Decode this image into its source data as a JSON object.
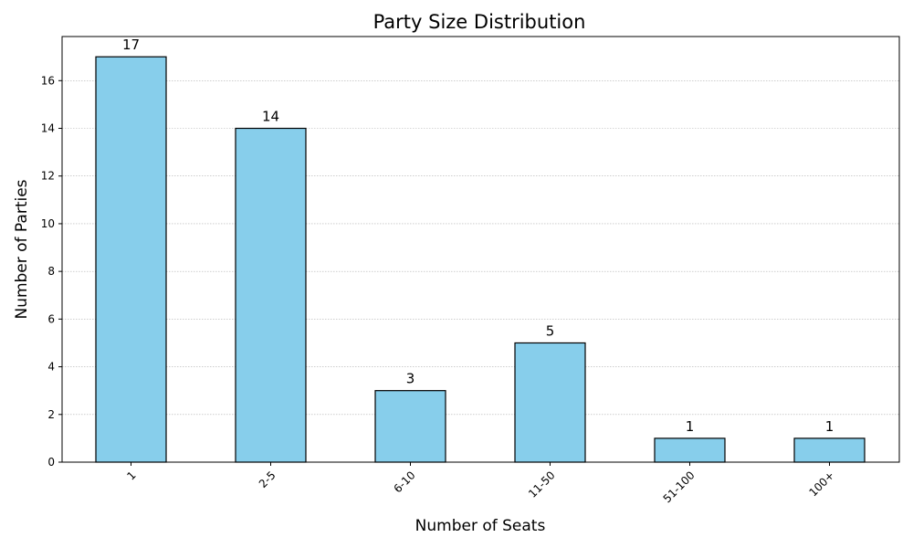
{
  "chart_data": {
    "type": "bar",
    "title": "Party Size Distribution",
    "xlabel": "Number of Seats",
    "ylabel": "Number of Parties",
    "categories": [
      "1",
      "2-5",
      "6-10",
      "11-50",
      "51-100",
      "100+"
    ],
    "values": [
      17,
      14,
      3,
      5,
      1,
      1
    ],
    "data_labels": [
      "17",
      "14",
      "3",
      "5",
      "1",
      "1"
    ],
    "ylim": [
      0,
      17.85
    ],
    "y_ticks": [
      0,
      2,
      4,
      6,
      8,
      10,
      12,
      14,
      16
    ],
    "y_tick_labels": [
      "0",
      "2",
      "4",
      "6",
      "8",
      "10",
      "12",
      "14",
      "16"
    ],
    "grid": "y, dotted",
    "legend": "none",
    "x_tick_rotation": 45,
    "colors": {
      "bar_fill": "#87ceeb",
      "bar_edge": "#000000",
      "grid": "#b0b0b0"
    }
  }
}
